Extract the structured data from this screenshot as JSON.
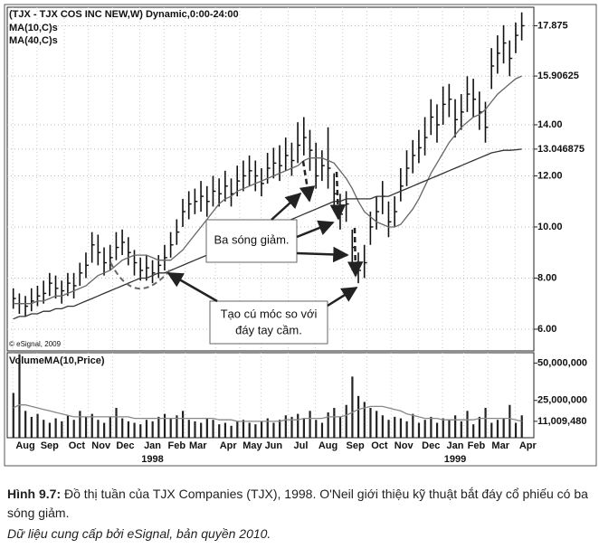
{
  "chart_data": [
    {
      "type": "ohlc",
      "title": "(TJX - TJX COS INC NEW,W) Dynamic,0:00-24:00",
      "watermark": "© eSignal, 2009",
      "high": [
        7.6,
        7.4,
        7.3,
        7.6,
        7.7,
        7.9,
        8.2,
        8.1,
        7.9,
        8.2,
        8.2,
        8.6,
        9.0,
        9.8,
        9.7,
        9.2,
        9.3,
        9.8,
        9.9,
        9.6,
        9.1,
        8.8,
        8.9,
        8.7,
        8.9,
        9.3,
        9.8,
        10.3,
        11.1,
        11.4,
        11.5,
        11.8,
        11.6,
        12.0,
        11.9,
        12.2,
        11.9,
        12.4,
        12.6,
        12.8,
        12.6,
        12.3,
        12.9,
        13.1,
        13.2,
        13.5,
        13.3,
        14.1,
        14.3,
        13.8,
        13.3,
        13.0,
        13.9,
        12.1,
        11.3,
        11.4,
        9.9,
        9.0,
        9.3,
        10.6,
        11.2,
        11.8,
        11.0,
        11.2,
        12.3,
        13.0,
        13.4,
        13.8,
        14.3,
        15.0,
        14.8,
        15.5,
        15.6,
        15.0,
        15.2,
        15.9,
        15.8,
        15.3,
        14.9,
        17.0,
        17.5,
        17.9,
        17.3,
        18.0,
        18.4
      ],
      "low": [
        6.8,
        6.6,
        6.5,
        6.7,
        6.9,
        7.0,
        7.3,
        7.2,
        7.0,
        7.3,
        7.2,
        7.7,
        8.0,
        8.6,
        8.5,
        8.1,
        8.3,
        8.7,
        8.9,
        8.5,
        8.1,
        7.9,
        7.9,
        7.8,
        8.0,
        8.3,
        8.8,
        9.3,
        10.0,
        10.3,
        10.5,
        10.6,
        10.4,
        10.8,
        10.8,
        11.0,
        10.8,
        11.2,
        11.4,
        11.6,
        11.4,
        11.2,
        11.7,
        11.9,
        11.8,
        12.2,
        12.0,
        12.5,
        12.8,
        12.2,
        11.5,
        11.8,
        11.5,
        10.6,
        9.9,
        10.2,
        8.3,
        7.8,
        8.0,
        9.3,
        9.9,
        10.5,
        9.6,
        10.0,
        11.0,
        11.6,
        12.1,
        12.5,
        12.8,
        13.6,
        13.3,
        14.0,
        14.3,
        13.5,
        13.8,
        14.5,
        14.3,
        13.8,
        13.3,
        15.4,
        16.0,
        16.4,
        15.9,
        16.8,
        17.3
      ],
      "close": [
        7.2,
        7.0,
        6.9,
        7.1,
        7.3,
        7.4,
        7.8,
        7.6,
        7.5,
        7.8,
        7.7,
        8.2,
        8.5,
        9.3,
        9.0,
        8.6,
        8.8,
        9.2,
        9.4,
        9.0,
        8.6,
        8.3,
        8.4,
        8.2,
        8.5,
        8.8,
        9.3,
        9.8,
        10.6,
        10.9,
        11.0,
        11.2,
        11.0,
        11.4,
        11.3,
        11.6,
        11.3,
        11.8,
        12.0,
        12.2,
        12.0,
        11.7,
        12.3,
        12.5,
        12.4,
        12.8,
        12.6,
        13.2,
        13.5,
        13.0,
        12.0,
        12.4,
        12.3,
        11.3,
        10.5,
        10.9,
        9.2,
        8.3,
        8.6,
        10.0,
        10.6,
        11.2,
        10.2,
        10.6,
        11.6,
        12.3,
        12.8,
        13.1,
        13.5,
        14.3,
        14.0,
        14.8,
        15.0,
        14.2,
        14.5,
        15.2,
        15.0,
        14.5,
        13.9,
        16.3,
        16.8,
        17.2,
        16.6,
        17.5,
        17.875
      ],
      "color": "#111111",
      "series": [
        {
          "name": "MA(10,C)s",
          "color": "#666666",
          "values": [
            7.0,
            7.0,
            7.0,
            7.0,
            7.1,
            7.1,
            7.2,
            7.3,
            7.3,
            7.4,
            7.5,
            7.6,
            7.7,
            7.9,
            8.1,
            8.2,
            8.3,
            8.5,
            8.7,
            8.8,
            8.9,
            8.9,
            8.9,
            8.8,
            8.7,
            8.7,
            8.7,
            8.9,
            9.1,
            9.4,
            9.7,
            10.0,
            10.3,
            10.6,
            10.9,
            11.1,
            11.2,
            11.4,
            11.5,
            11.6,
            11.7,
            11.8,
            11.9,
            12.0,
            12.1,
            12.2,
            12.3,
            12.4,
            12.6,
            12.7,
            12.7,
            12.7,
            12.6,
            12.5,
            12.2,
            11.9,
            11.5,
            11.0,
            10.6,
            10.4,
            10.2,
            10.1,
            10.0,
            10.0,
            10.1,
            10.4,
            10.7,
            11.1,
            11.6,
            12.1,
            12.5,
            12.9,
            13.3,
            13.6,
            13.9,
            14.1,
            14.3,
            14.4,
            14.6,
            14.9,
            15.2,
            15.4,
            15.6,
            15.8,
            15.90625
          ]
        },
        {
          "name": "MA(40,C)s",
          "color": "#333333",
          "values": [
            6.4,
            6.5,
            6.5,
            6.6,
            6.6,
            6.7,
            6.7,
            6.8,
            6.8,
            6.9,
            6.9,
            7.0,
            7.1,
            7.2,
            7.3,
            7.4,
            7.5,
            7.6,
            7.7,
            7.8,
            7.9,
            8.0,
            8.0,
            8.1,
            8.2,
            8.2,
            8.3,
            8.4,
            8.5,
            8.6,
            8.7,
            8.8,
            8.9,
            9.0,
            9.1,
            9.2,
            9.3,
            9.4,
            9.5,
            9.6,
            9.7,
            9.8,
            9.9,
            10.0,
            10.1,
            10.2,
            10.3,
            10.4,
            10.5,
            10.6,
            10.7,
            10.8,
            10.9,
            11.0,
            11.0,
            11.1,
            11.1,
            11.1,
            11.1,
            11.1,
            11.2,
            11.2,
            11.2,
            11.3,
            11.4,
            11.5,
            11.6,
            11.7,
            11.8,
            11.9,
            12.0,
            12.1,
            12.2,
            12.3,
            12.4,
            12.5,
            12.6,
            12.7,
            12.8,
            12.9,
            12.95,
            13.0,
            13.0,
            13.02,
            13.046875
          ]
        }
      ],
      "xlim": [
        -1,
        86
      ],
      "ylim": [
        5.15,
        18.6
      ],
      "yticks": [
        {
          "value": 6,
          "label": "6.00"
        },
        {
          "value": 8,
          "label": "8.00"
        },
        {
          "value": 10,
          "label": "10.00"
        },
        {
          "value": 12,
          "label": "12.00"
        },
        13.046875,
        {
          "value": 14,
          "label": "14.00"
        },
        15.90625,
        17.875
      ],
      "grid": true,
      "annotations": [
        [
          "Ba sóng giảm."
        ],
        [
          "Tạo cú móc so với",
          "đáy tay cầm."
        ]
      ]
    },
    {
      "type": "bar",
      "title": "VolumeMA(10,Price)",
      "color": "#222222",
      "values": [
        30000000,
        56000000,
        18000000,
        14000000,
        16000000,
        12000000,
        10000000,
        13000000,
        11000000,
        15000000,
        12000000,
        18000000,
        14000000,
        16000000,
        12000000,
        10000000,
        14000000,
        20000000,
        13000000,
        11000000,
        10000000,
        9000000,
        12000000,
        11000000,
        14000000,
        16000000,
        13000000,
        15000000,
        18000000,
        12000000,
        11000000,
        10000000,
        13000000,
        12000000,
        9000000,
        10000000,
        8000000,
        11000000,
        12000000,
        10000000,
        9000000,
        11000000,
        13000000,
        10000000,
        12000000,
        15000000,
        14000000,
        16000000,
        13000000,
        18000000,
        12000000,
        10000000,
        17000000,
        20000000,
        14000000,
        22000000,
        41000000,
        28000000,
        24000000,
        20000000,
        18000000,
        15000000,
        12000000,
        14000000,
        13000000,
        11000000,
        16000000,
        10000000,
        12000000,
        14000000,
        10000000,
        13000000,
        12000000,
        15000000,
        11000000,
        18000000,
        9000000,
        14000000,
        20000000,
        10000000,
        12000000,
        13000000,
        22000000,
        10000000,
        15000000
      ],
      "series": [
        {
          "color": "#888888",
          "values": [
            20000000,
            22000000,
            22000000,
            21000000,
            20000000,
            19000000,
            18000000,
            17000000,
            16000000,
            15000000,
            14000000,
            14000000,
            14000000,
            14000000,
            14000000,
            14000000,
            14000000,
            14000000,
            14000000,
            14000000,
            13000000,
            13000000,
            13000000,
            13000000,
            13000000,
            13000000,
            13000000,
            13000000,
            13000000,
            13000000,
            13000000,
            13000000,
            13000000,
            13000000,
            12000000,
            12000000,
            12000000,
            11000000,
            11000000,
            11000000,
            11000000,
            11000000,
            11000000,
            11000000,
            11000000,
            12000000,
            12000000,
            12000000,
            13000000,
            13000000,
            13000000,
            13000000,
            14000000,
            14000000,
            14000000,
            15000000,
            17000000,
            19000000,
            20000000,
            21000000,
            21000000,
            21000000,
            20000000,
            19000000,
            18000000,
            16000000,
            15000000,
            14000000,
            13000000,
            13000000,
            13000000,
            12000000,
            12000000,
            12000000,
            12000000,
            12000000,
            12000000,
            13000000,
            13000000,
            13000000,
            13000000,
            13000000,
            13000000,
            12000000,
            11009480
          ]
        }
      ],
      "xlim": [
        -1,
        86
      ],
      "ylim": [
        0,
        57000000
      ],
      "yticks": [
        {
          "value": 11009480,
          "label": "11,009,480"
        },
        {
          "value": 25000000,
          "label": "25,000,000"
        },
        {
          "value": 50000000,
          "label": "50,000,000"
        }
      ],
      "xticks": [
        {
          "value": 2,
          "label": "Aug"
        },
        {
          "value": 6,
          "label": "Sep"
        },
        {
          "value": 10.5,
          "label": "Oct"
        },
        {
          "value": 14.5,
          "label": "Nov"
        },
        {
          "value": 18.5,
          "label": "Dec"
        },
        {
          "value": 23,
          "label": "Jan"
        },
        {
          "value": 27,
          "label": "Feb"
        },
        {
          "value": 30.5,
          "label": "Mar"
        },
        {
          "value": 35.5,
          "label": "Apr"
        },
        {
          "value": 39.5,
          "label": "May"
        },
        {
          "value": 43,
          "label": "Jun"
        },
        {
          "value": 47.5,
          "label": "Jul"
        },
        {
          "value": 52,
          "label": "Aug"
        },
        {
          "value": 56.5,
          "label": "Sep"
        },
        {
          "value": 60.5,
          "label": "Oct"
        },
        {
          "value": 64.5,
          "label": "Nov"
        },
        {
          "value": 69,
          "label": "Dec"
        },
        {
          "value": 73,
          "label": "Jan"
        },
        {
          "value": 76.5,
          "label": "Feb"
        },
        {
          "value": 80.5,
          "label": "Mar"
        },
        {
          "value": 85,
          "label": "Apr"
        }
      ],
      "year_ticks": [
        {
          "value": 23,
          "label": "1998"
        },
        {
          "value": 73,
          "label": "1999"
        }
      ]
    }
  ],
  "caption": {
    "label": "Hình 9.7:",
    "text": "Đồ thị tuần của TJX Companies (TJX), 1998. O'Neil giới thiệu kỹ thuật bắt đáy cổ phiếu có ba sóng giảm.",
    "source": "Dữ liệu cung cấp bởi eSignal, bản quyền 2010."
  }
}
